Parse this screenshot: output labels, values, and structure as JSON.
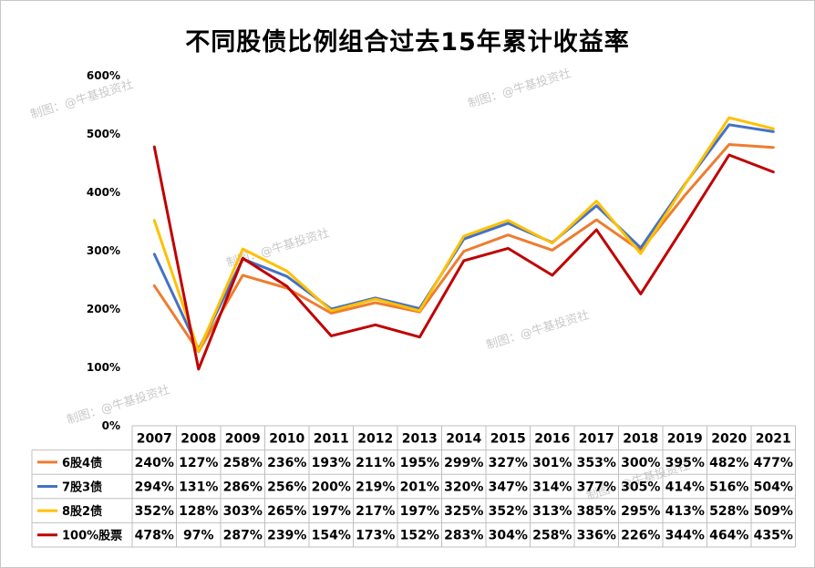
{
  "title": "不同股债比例组合过去15年累计收益率",
  "watermark": "制图：@牛基投资社",
  "chart_data": {
    "type": "line",
    "title": "不同股债比例组合过去15年累计收益率",
    "x": [
      "2007",
      "2008",
      "2009",
      "2010",
      "2011",
      "2012",
      "2013",
      "2014",
      "2015",
      "2016",
      "2017",
      "2018",
      "2019",
      "2020",
      "2021"
    ],
    "ylim": [
      0,
      600
    ],
    "yticks": [
      0,
      100,
      200,
      300,
      400,
      500,
      600
    ],
    "ytick_labels": [
      "0%",
      "100%",
      "200%",
      "300%",
      "400%",
      "500%",
      "600%"
    ],
    "grid": false,
    "legend": "data-table-bottom",
    "series": [
      {
        "name": "6股4债",
        "color": "#ed7d31",
        "values": [
          240,
          127,
          258,
          236,
          193,
          211,
          195,
          299,
          327,
          301,
          353,
          300,
          395,
          482,
          477
        ],
        "labels": [
          "240%",
          "127%",
          "258%",
          "236%",
          "193%",
          "211%",
          "195%",
          "299%",
          "327%",
          "301%",
          "353%",
          "300%",
          "395%",
          "482%",
          "477%"
        ]
      },
      {
        "name": "7股3债",
        "color": "#4472c4",
        "values": [
          294,
          131,
          286,
          256,
          200,
          219,
          201,
          320,
          347,
          314,
          377,
          305,
          414,
          516,
          504
        ],
        "labels": [
          "294%",
          "131%",
          "286%",
          "256%",
          "200%",
          "219%",
          "201%",
          "320%",
          "347%",
          "314%",
          "377%",
          "305%",
          "414%",
          "516%",
          "504%"
        ]
      },
      {
        "name": "8股2债",
        "color": "#ffc000",
        "values": [
          352,
          128,
          303,
          265,
          197,
          217,
          197,
          325,
          352,
          313,
          385,
          295,
          413,
          528,
          509
        ],
        "labels": [
          "352%",
          "128%",
          "303%",
          "265%",
          "197%",
          "217%",
          "197%",
          "325%",
          "352%",
          "313%",
          "385%",
          "295%",
          "413%",
          "528%",
          "509%"
        ]
      },
      {
        "name": "100%股票",
        "color": "#c00000",
        "values": [
          478,
          97,
          287,
          239,
          154,
          173,
          152,
          283,
          304,
          258,
          336,
          226,
          344,
          464,
          435
        ],
        "labels": [
          "478%",
          "97%",
          "287%",
          "239%",
          "154%",
          "173%",
          "152%",
          "283%",
          "304%",
          "258%",
          "336%",
          "226%",
          "344%",
          "464%",
          "435%"
        ]
      }
    ]
  }
}
